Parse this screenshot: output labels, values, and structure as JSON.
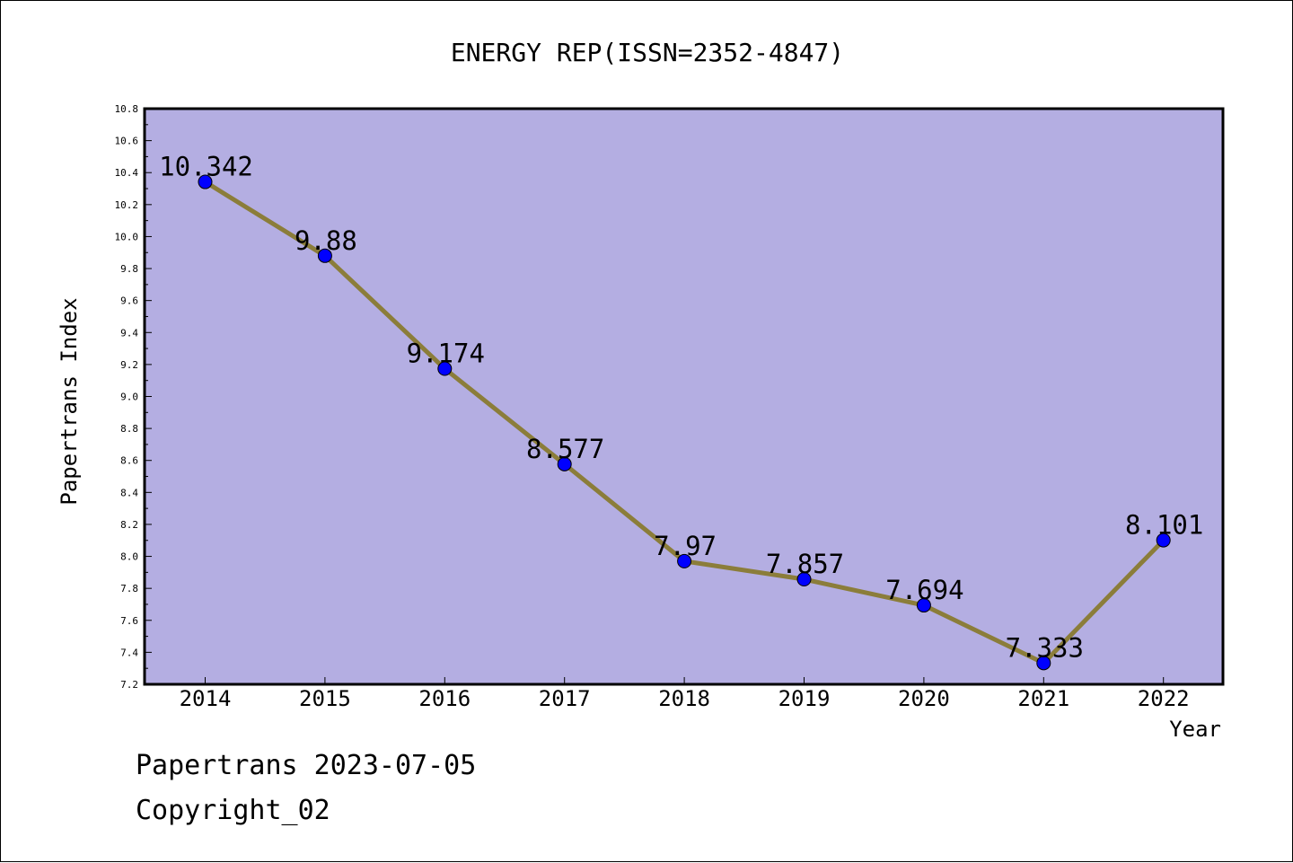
{
  "chart_data": {
    "type": "line",
    "title": "ENERGY REP(ISSN=2352-4847)",
    "xlabel": "Year",
    "ylabel": "Papertrans Index",
    "categories": [
      "2014",
      "2015",
      "2016",
      "2017",
      "2018",
      "2019",
      "2020",
      "2021",
      "2022"
    ],
    "series": [
      {
        "values": [
          10.342,
          9.88,
          9.174,
          8.577,
          7.97,
          7.857,
          7.694,
          7.333,
          8.101
        ]
      }
    ],
    "data_labels": [
      "10.342",
      "9.88",
      "9.174",
      "8.577",
      "7.97",
      "7.857",
      "7.694",
      "7.333",
      "8.101"
    ],
    "ylim": [
      7.2,
      10.8
    ],
    "y_ticks": [
      "7.2",
      "7.4",
      "7.6",
      "7.8",
      "8.0",
      "8.2",
      "8.4",
      "8.6",
      "8.8",
      "9.0",
      "9.2",
      "9.4",
      "9.6",
      "9.8",
      "10.0",
      "10.2",
      "10.4",
      "10.6",
      "10.8"
    ],
    "grid": false,
    "legend": "none",
    "colors": {
      "plot_background": "#b4aee2",
      "line": "#8b7d3a",
      "marker": "#0000ff"
    }
  },
  "footer": {
    "line1": "Papertrans 2023-07-05",
    "line2": "Copyright_02"
  }
}
